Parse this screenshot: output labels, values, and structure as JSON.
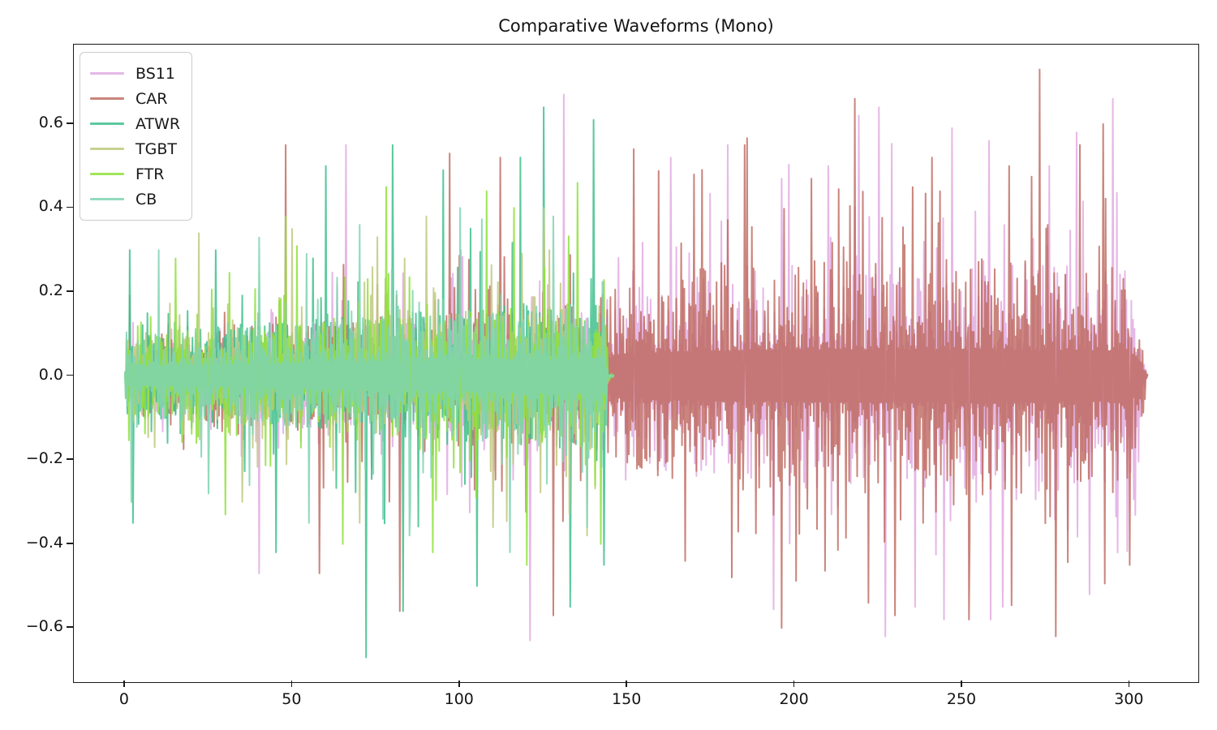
{
  "figure": {
    "background": "#ffffff",
    "text_color": "#141414",
    "spine_color": "#1a1a1a"
  },
  "chart_data": {
    "type": "line",
    "title": "Comparative Waveforms (Mono)",
    "xlabel": "",
    "ylabel": "",
    "grid": false,
    "legend_position": "upper-left",
    "xlim": [
      -15.25,
      320.25
    ],
    "ylim": [
      -0.727,
      0.789
    ],
    "x_ticks": [
      {
        "value": 0,
        "label": "0"
      },
      {
        "value": 50,
        "label": "50"
      },
      {
        "value": 100,
        "label": "100"
      },
      {
        "value": 150,
        "label": "150"
      },
      {
        "value": 200,
        "label": "200"
      },
      {
        "value": 250,
        "label": "250"
      },
      {
        "value": 300,
        "label": "300"
      }
    ],
    "y_ticks": [
      {
        "value": 0.6,
        "label": "0.6"
      },
      {
        "value": 0.4,
        "label": "0.4"
      },
      {
        "value": 0.2,
        "label": "0.2"
      },
      {
        "value": 0.0,
        "label": "0.0"
      },
      {
        "value": -0.2,
        "label": "−0.2"
      },
      {
        "value": -0.4,
        "label": "−0.4"
      },
      {
        "value": -0.6,
        "label": "−0.6"
      }
    ],
    "series": [
      {
        "name": "BS11",
        "color": "#DDA0DD",
        "alpha": 0.75,
        "seed": 11,
        "start": 0,
        "end": 305.3,
        "spike_cap": 0.58,
        "envelope": [
          [
            0,
            0.008
          ],
          [
            0.8,
            0.055
          ],
          [
            20,
            0.075
          ],
          [
            60,
            0.095
          ],
          [
            100,
            0.11
          ],
          [
            140,
            0.125
          ],
          [
            150,
            0.16
          ],
          [
            170,
            0.185
          ],
          [
            210,
            0.195
          ],
          [
            260,
            0.2
          ],
          [
            300,
            0.19
          ],
          [
            303.5,
            0.1
          ],
          [
            304.8,
            0.01
          ],
          [
            305.3,
            0.002
          ]
        ],
        "peaks": [
          [
            40,
            -0.47
          ],
          [
            66,
            0.55
          ],
          [
            121,
            -0.63
          ],
          [
            131,
            0.67
          ],
          [
            163,
            0.52
          ],
          [
            180,
            0.55
          ],
          [
            196,
            0.47
          ],
          [
            210,
            0.5
          ],
          [
            219,
            0.62
          ],
          [
            225,
            0.64
          ],
          [
            227,
            -0.62
          ],
          [
            236,
            -0.55
          ],
          [
            247,
            0.59
          ],
          [
            258,
            0.56
          ],
          [
            262,
            -0.55
          ],
          [
            276,
            0.5
          ],
          [
            288,
            -0.52
          ],
          [
            295,
            0.66
          ]
        ]
      },
      {
        "name": "CAR",
        "color": "#BD665C",
        "alpha": 0.8,
        "seed": 22,
        "start": 0,
        "end": 305.3,
        "spike_cap": 0.6,
        "envelope": [
          [
            0,
            0.008
          ],
          [
            0.8,
            0.06
          ],
          [
            20,
            0.08
          ],
          [
            60,
            0.1
          ],
          [
            100,
            0.115
          ],
          [
            140,
            0.13
          ],
          [
            150,
            0.17
          ],
          [
            170,
            0.195
          ],
          [
            210,
            0.205
          ],
          [
            260,
            0.21
          ],
          [
            300,
            0.195
          ],
          [
            303.5,
            0.1
          ],
          [
            304.8,
            0.01
          ],
          [
            305.3,
            0.002
          ]
        ],
        "peaks": [
          [
            48,
            0.55
          ],
          [
            58,
            -0.47
          ],
          [
            82,
            -0.56
          ],
          [
            97,
            0.53
          ],
          [
            112,
            0.52
          ],
          [
            128,
            -0.57
          ],
          [
            152,
            0.54
          ],
          [
            170,
            0.48
          ],
          [
            185,
            0.55
          ],
          [
            196,
            -0.6
          ],
          [
            205,
            0.47
          ],
          [
            218,
            0.66
          ],
          [
            222,
            -0.54
          ],
          [
            230,
            -0.57
          ],
          [
            241,
            0.52
          ],
          [
            252,
            -0.58
          ],
          [
            264,
            0.5
          ],
          [
            273,
            0.73
          ],
          [
            278,
            -0.62
          ],
          [
            285,
            0.55
          ],
          [
            292,
            0.6
          ],
          [
            300,
            -0.45
          ]
        ]
      },
      {
        "name": "ATWR",
        "color": "#3FBF8D",
        "alpha": 0.85,
        "seed": 33,
        "start": 0,
        "end": 146,
        "spike_cap": 0.55,
        "envelope": [
          [
            0,
            0.01
          ],
          [
            0.6,
            0.07
          ],
          [
            5,
            0.075
          ],
          [
            20,
            0.082
          ],
          [
            50,
            0.098
          ],
          [
            90,
            0.115
          ],
          [
            125,
            0.13
          ],
          [
            142.5,
            0.135
          ],
          [
            143.8,
            0.09
          ],
          [
            144.3,
            0.004
          ],
          [
            146,
            0.002
          ]
        ],
        "peaks": [
          [
            1.5,
            0.3
          ],
          [
            2.5,
            -0.35
          ],
          [
            27,
            0.3
          ],
          [
            45,
            -0.42
          ],
          [
            60,
            0.5
          ],
          [
            72,
            -0.67
          ],
          [
            80,
            0.55
          ],
          [
            83,
            -0.56
          ],
          [
            95,
            0.49
          ],
          [
            105,
            -0.5
          ],
          [
            118,
            0.52
          ],
          [
            125,
            0.64
          ],
          [
            133,
            -0.55
          ],
          [
            140,
            0.61
          ],
          [
            143,
            -0.45
          ]
        ]
      },
      {
        "name": "TGBT",
        "color": "#BFC97F",
        "alpha": 0.85,
        "seed": 44,
        "start": 0,
        "end": 146,
        "spike_cap": 0.4,
        "envelope": [
          [
            0,
            0.01
          ],
          [
            0.6,
            0.065
          ],
          [
            5,
            0.07
          ],
          [
            20,
            0.078
          ],
          [
            50,
            0.092
          ],
          [
            90,
            0.11
          ],
          [
            125,
            0.125
          ],
          [
            142.5,
            0.13
          ],
          [
            143.8,
            0.085
          ],
          [
            144.3,
            0.004
          ],
          [
            146,
            0.002
          ]
        ],
        "peaks": [
          [
            22,
            0.34
          ],
          [
            35,
            -0.3
          ],
          [
            50,
            0.35
          ],
          [
            70,
            -0.35
          ],
          [
            90,
            0.38
          ],
          [
            110,
            -0.36
          ],
          [
            125,
            0.4
          ],
          [
            138,
            -0.38
          ]
        ]
      },
      {
        "name": "FTR",
        "color": "#8FE13C",
        "alpha": 0.85,
        "seed": 55,
        "start": 0,
        "end": 146,
        "spike_cap": 0.47,
        "envelope": [
          [
            0,
            0.01
          ],
          [
            0.6,
            0.068
          ],
          [
            5,
            0.074
          ],
          [
            20,
            0.08
          ],
          [
            50,
            0.096
          ],
          [
            90,
            0.113
          ],
          [
            125,
            0.128
          ],
          [
            142.5,
            0.132
          ],
          [
            143.8,
            0.088
          ],
          [
            144.3,
            0.004
          ],
          [
            146,
            0.002
          ]
        ],
        "peaks": [
          [
            15,
            0.28
          ],
          [
            30,
            -0.33
          ],
          [
            48,
            0.38
          ],
          [
            65,
            -0.4
          ],
          [
            78,
            0.45
          ],
          [
            92,
            -0.42
          ],
          [
            108,
            0.44
          ],
          [
            120,
            -0.45
          ],
          [
            135,
            0.46
          ],
          [
            142,
            -0.4
          ]
        ]
      },
      {
        "name": "CB",
        "color": "#7FD3B1",
        "alpha": 0.85,
        "seed": 66,
        "start": 0,
        "end": 146,
        "spike_cap": 0.43,
        "envelope": [
          [
            0,
            0.01
          ],
          [
            0.6,
            0.066
          ],
          [
            5,
            0.072
          ],
          [
            20,
            0.078
          ],
          [
            50,
            0.094
          ],
          [
            90,
            0.111
          ],
          [
            125,
            0.126
          ],
          [
            142.5,
            0.13
          ],
          [
            143.8,
            0.086
          ],
          [
            144.3,
            0.004
          ],
          [
            146,
            0.002
          ]
        ],
        "peaks": [
          [
            2,
            -0.3
          ],
          [
            10,
            0.3
          ],
          [
            25,
            -0.28
          ],
          [
            40,
            0.33
          ],
          [
            55,
            -0.35
          ],
          [
            70,
            0.36
          ],
          [
            85,
            -0.38
          ],
          [
            100,
            0.4
          ],
          [
            115,
            -0.42
          ],
          [
            128,
            0.38
          ],
          [
            138,
            -0.36
          ]
        ]
      }
    ]
  }
}
